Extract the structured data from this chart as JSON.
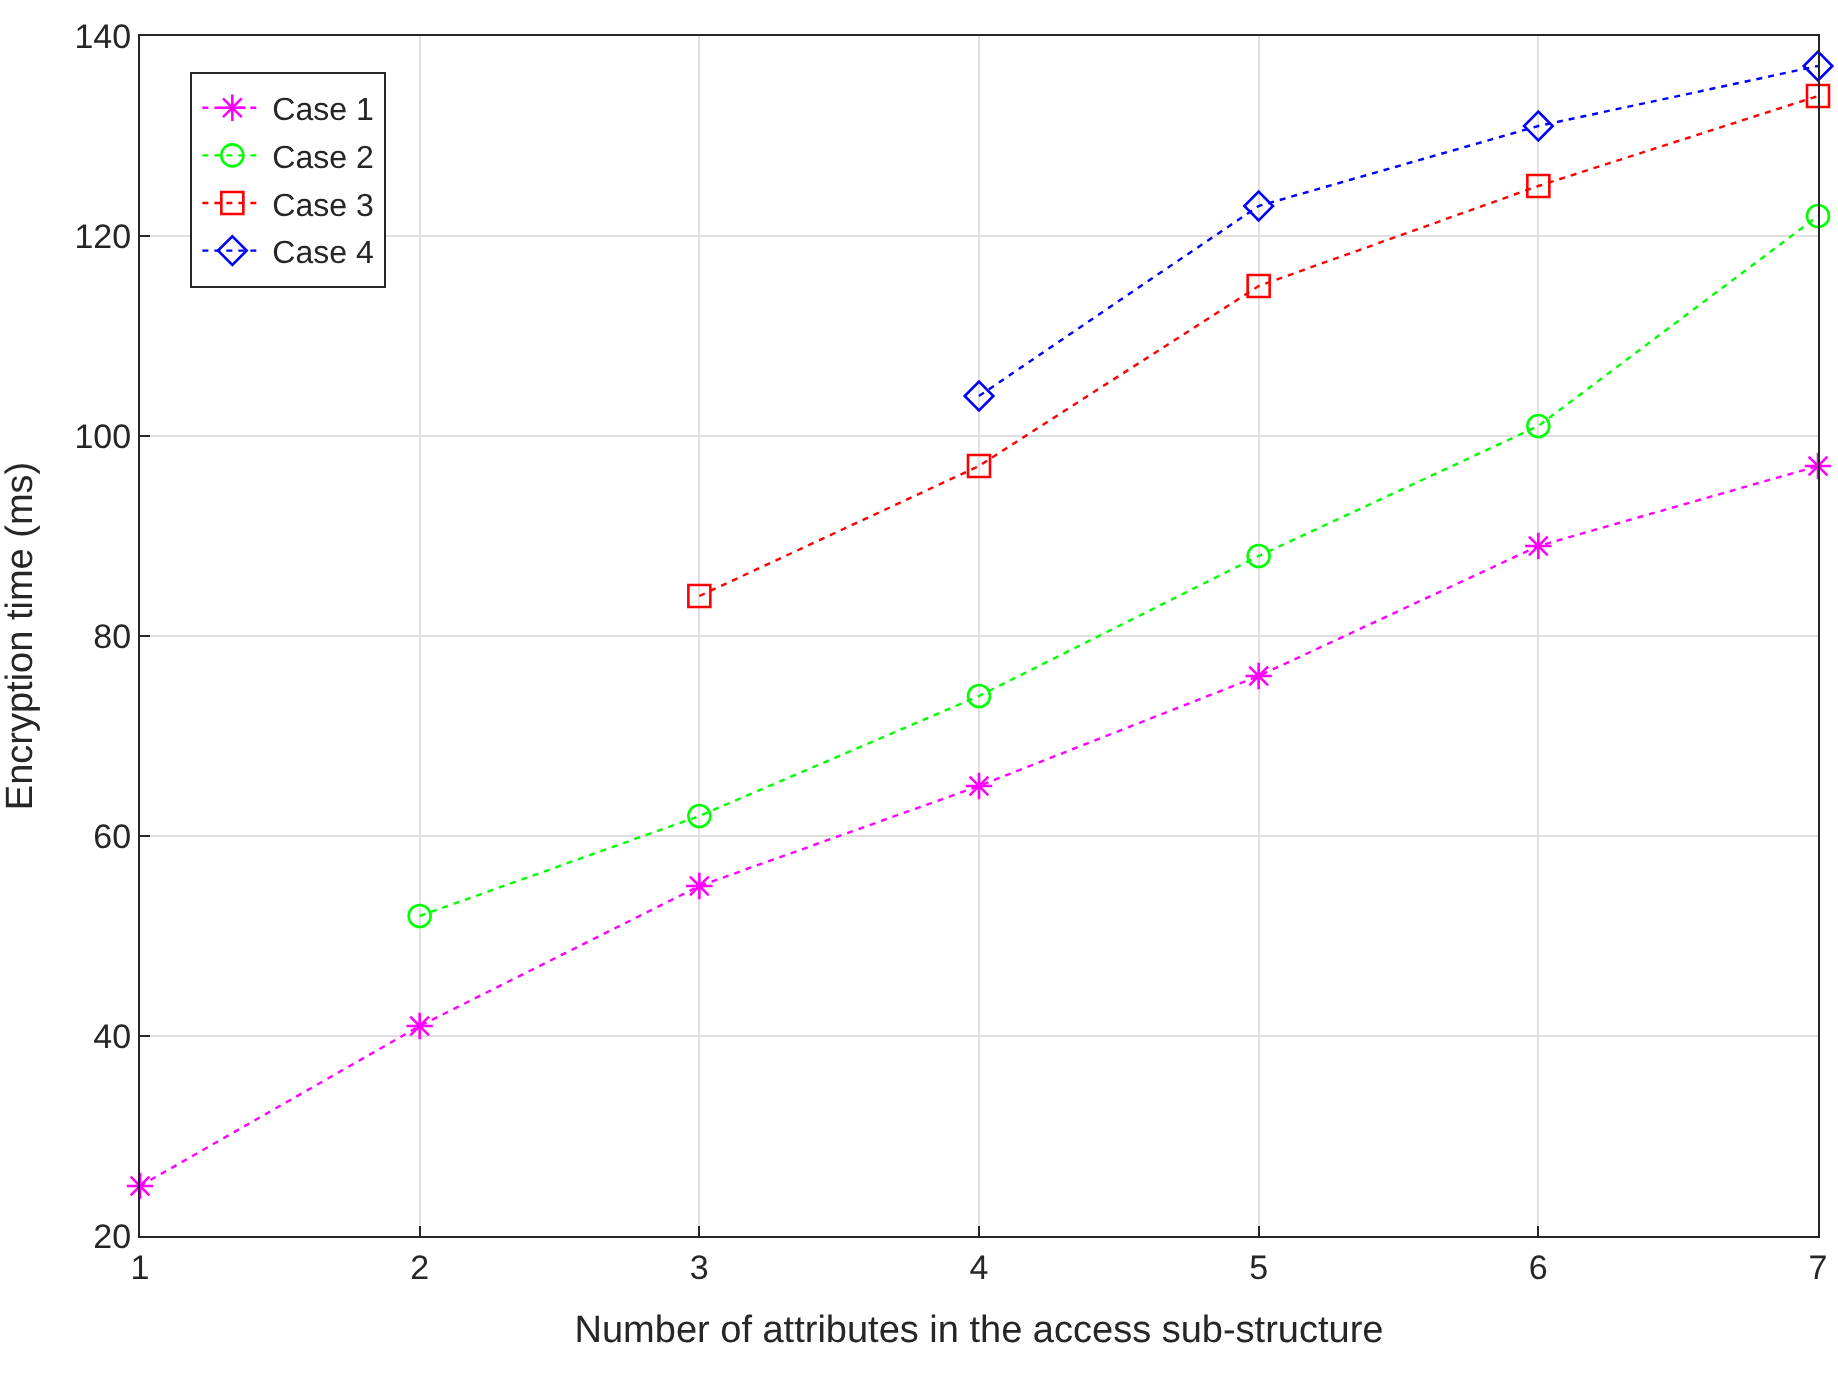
{
  "chart_data": {
    "type": "line",
    "xlabel": "Number of attributes in the access sub-structure",
    "ylabel": "Encryption time (ms)",
    "xlim": [
      1,
      7
    ],
    "xticks": [
      1,
      2,
      3,
      4,
      5,
      6,
      7
    ],
    "ylim": [
      20,
      140
    ],
    "yticks": [
      20,
      40,
      60,
      80,
      100,
      120,
      140
    ],
    "grid": true,
    "legend": "top left",
    "line_style": "dotted",
    "series": [
      {
        "name": "Case 1",
        "color": "#ff00ff",
        "marker": "cross",
        "x": [
          1,
          2,
          3,
          4,
          5,
          6,
          7
        ],
        "values": [
          25,
          41,
          55,
          65,
          76,
          89,
          97
        ]
      },
      {
        "name": "Case 2",
        "color": "#00ff00",
        "marker": "circle",
        "x": [
          2,
          3,
          4,
          5,
          6,
          7
        ],
        "values": [
          52,
          62,
          74,
          88,
          101,
          122
        ]
      },
      {
        "name": "Case 3",
        "color": "#ff0000",
        "marker": "square",
        "x": [
          3,
          4,
          5,
          6,
          7
        ],
        "values": [
          84,
          97,
          115,
          125,
          134
        ]
      },
      {
        "name": "Case 4",
        "color": "#0000ff",
        "marker": "diamond",
        "x": [
          4,
          5,
          6,
          7
        ],
        "values": [
          104,
          123,
          131,
          137
        ]
      }
    ]
  }
}
